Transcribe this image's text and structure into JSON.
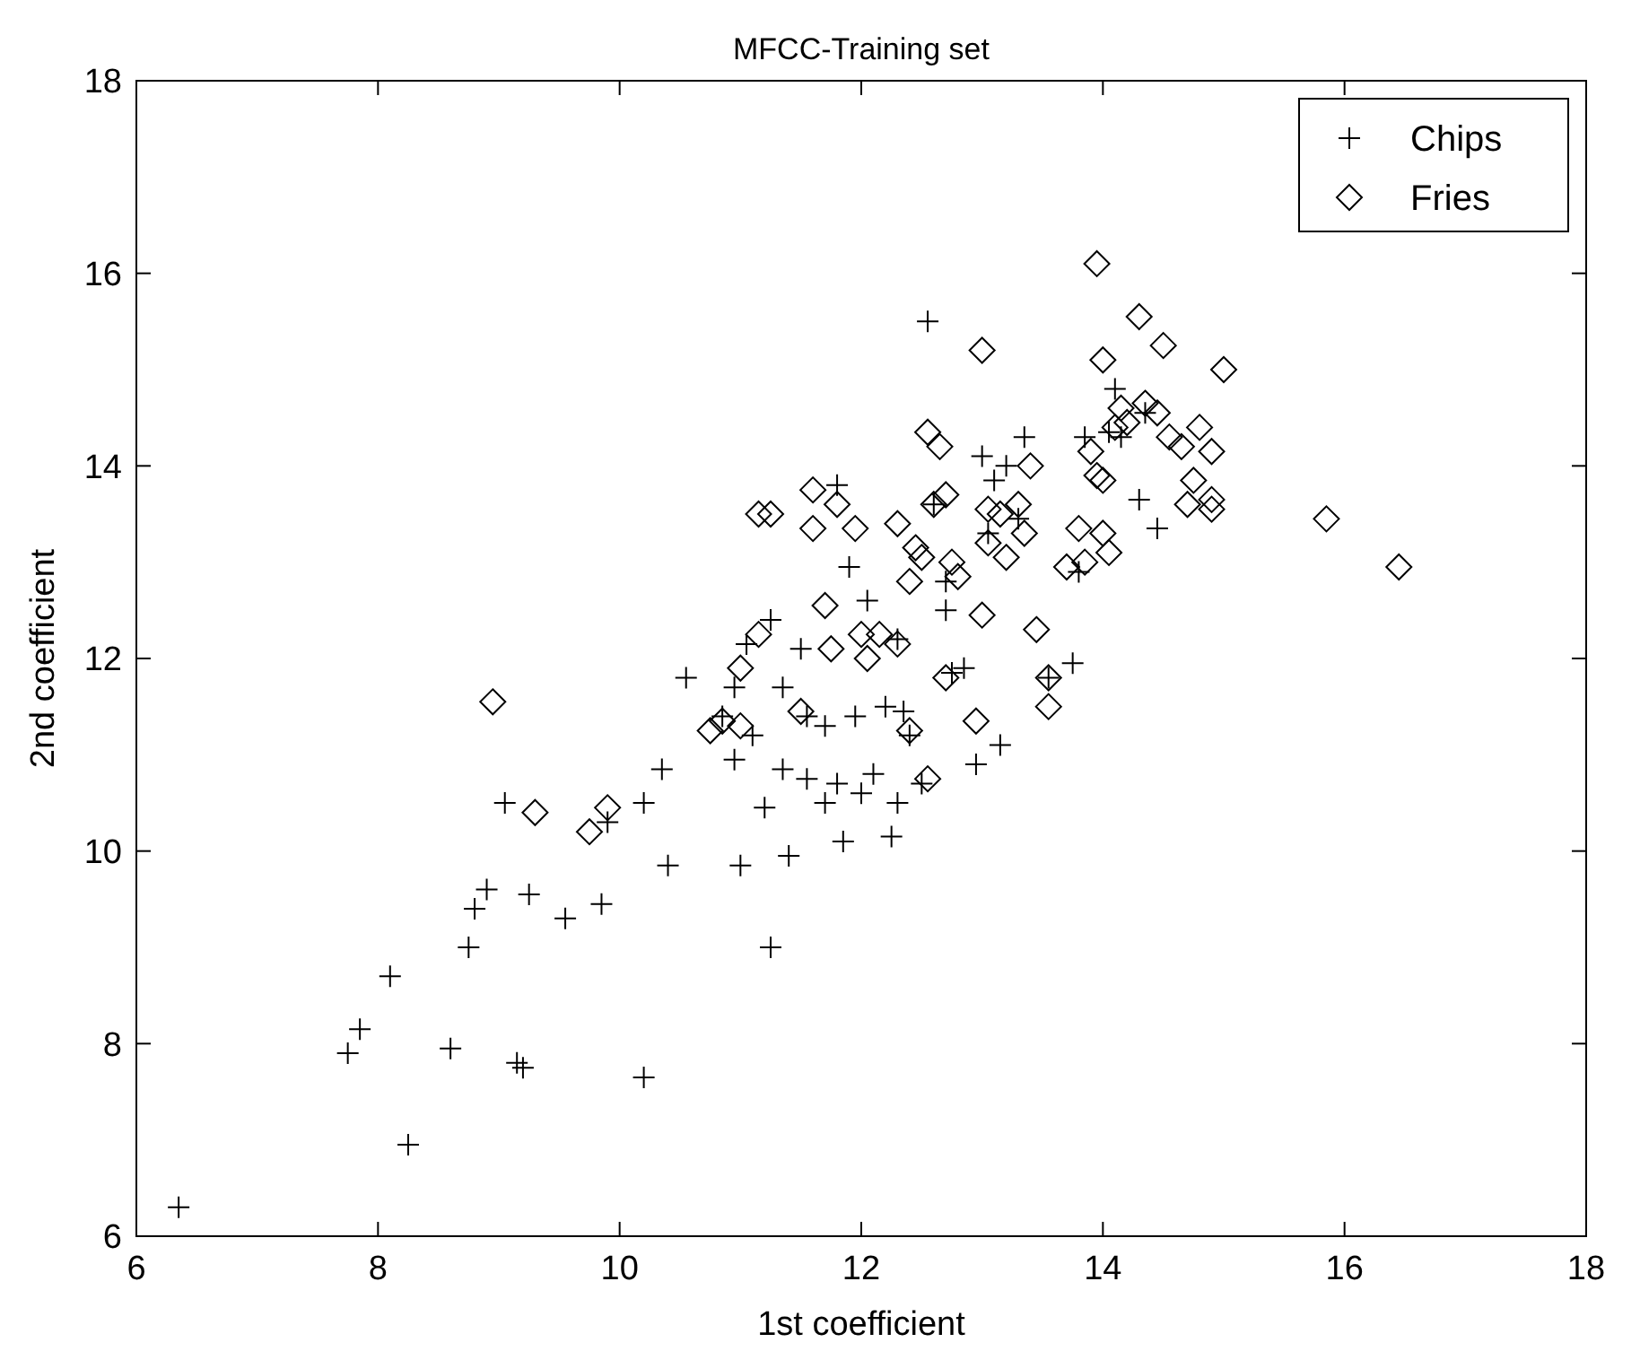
{
  "chart_data": {
    "type": "scatter",
    "title": "MFCC-Training set",
    "xlabel": "1st coefficient",
    "ylabel": "2nd coefficient",
    "xlim": [
      6,
      18
    ],
    "ylim": [
      6,
      18
    ],
    "xticks": [
      6,
      8,
      10,
      12,
      14,
      16,
      18
    ],
    "yticks": [
      6,
      8,
      10,
      12,
      14,
      16,
      18
    ],
    "grid": false,
    "legend": "top right",
    "series": [
      {
        "name": "Chips",
        "color": "#000000",
        "marker": "cross",
        "x": [
          6.35,
          7.75,
          7.85,
          8.1,
          8.25,
          8.6,
          8.75,
          8.8,
          8.9,
          9.05,
          9.15,
          9.2,
          9.25,
          9.55,
          9.85,
          9.9,
          10.2,
          10.2,
          10.35,
          10.4,
          10.55,
          10.85,
          10.95,
          10.95,
          11.0,
          11.05,
          11.1,
          11.2,
          11.25,
          11.25,
          11.35,
          11.35,
          11.4,
          11.5,
          11.55,
          11.55,
          11.7,
          11.7,
          11.8,
          11.8,
          11.85,
          11.9,
          11.95,
          12.0,
          12.05,
          12.1,
          12.2,
          12.25,
          12.3,
          12.3,
          12.35,
          12.4,
          12.5,
          12.55,
          12.6,
          12.7,
          12.7,
          12.75,
          12.85,
          12.95,
          13.0,
          13.05,
          13.1,
          13.15,
          13.2,
          13.3,
          13.35,
          13.55,
          13.75,
          13.8,
          13.85,
          14.05,
          14.1,
          14.3,
          14.45,
          14.35,
          14.15
        ],
        "values": [
          6.3,
          7.9,
          8.15,
          8.7,
          6.95,
          7.95,
          9.0,
          9.4,
          9.6,
          10.5,
          7.8,
          7.75,
          9.55,
          9.3,
          9.45,
          10.3,
          10.5,
          7.65,
          10.85,
          9.85,
          11.8,
          11.4,
          10.95,
          11.7,
          9.85,
          12.15,
          11.2,
          10.45,
          12.4,
          9.0,
          11.7,
          10.85,
          9.95,
          12.1,
          11.4,
          10.75,
          11.3,
          10.5,
          10.7,
          13.8,
          10.1,
          12.95,
          11.4,
          10.6,
          12.6,
          10.8,
          11.5,
          10.15,
          10.5,
          12.2,
          11.45,
          11.2,
          10.7,
          15.5,
          13.6,
          12.8,
          12.5,
          11.85,
          11.9,
          10.9,
          14.1,
          13.3,
          13.85,
          11.1,
          14.0,
          13.45,
          14.3,
          11.8,
          11.95,
          12.9,
          14.3,
          14.35,
          14.8,
          13.65,
          13.35,
          14.55,
          14.3
        ]
      },
      {
        "name": "Fries",
        "color": "#000000",
        "marker": "diamond",
        "x": [
          8.95,
          9.3,
          9.75,
          9.9,
          10.75,
          10.85,
          11.0,
          11.0,
          11.15,
          11.15,
          11.25,
          11.5,
          11.6,
          11.6,
          11.7,
          11.75,
          11.8,
          11.95,
          12.0,
          12.05,
          12.15,
          12.3,
          12.3,
          12.4,
          12.4,
          12.45,
          12.5,
          12.55,
          12.6,
          12.55,
          12.65,
          12.7,
          12.7,
          12.75,
          12.8,
          12.95,
          13.0,
          13.0,
          13.05,
          13.05,
          13.15,
          13.2,
          13.3,
          13.35,
          13.4,
          13.45,
          13.55,
          13.55,
          13.7,
          13.8,
          13.85,
          13.9,
          13.95,
          13.95,
          14.0,
          14.0,
          14.0,
          14.05,
          14.1,
          14.15,
          14.2,
          14.3,
          14.35,
          14.45,
          14.5,
          14.55,
          14.65,
          14.7,
          14.75,
          14.8,
          14.9,
          14.9,
          14.9,
          15.0,
          15.85,
          16.45
        ],
        "values": [
          11.55,
          10.4,
          10.2,
          10.45,
          11.25,
          11.35,
          11.3,
          11.9,
          12.25,
          13.5,
          13.5,
          11.45,
          13.35,
          13.75,
          12.55,
          12.1,
          13.6,
          13.35,
          12.25,
          12.0,
          12.25,
          12.15,
          13.4,
          12.8,
          11.25,
          13.15,
          13.05,
          14.35,
          13.6,
          10.75,
          14.2,
          13.7,
          11.8,
          13.0,
          12.85,
          11.35,
          12.45,
          15.2,
          13.55,
          13.2,
          13.5,
          13.05,
          13.6,
          13.3,
          14.0,
          12.3,
          11.8,
          11.5,
          12.95,
          13.35,
          13.0,
          14.15,
          16.1,
          13.9,
          15.1,
          13.85,
          13.3,
          13.1,
          14.4,
          14.6,
          14.45,
          15.55,
          14.65,
          14.55,
          15.25,
          14.3,
          14.2,
          13.6,
          13.85,
          14.4,
          14.15,
          13.65,
          13.55,
          15.0,
          13.45,
          12.95
        ]
      }
    ]
  }
}
